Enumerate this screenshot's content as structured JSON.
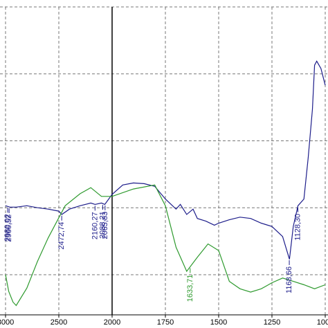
{
  "chart_data": {
    "type": "line",
    "xlim": [
      3000,
      1000
    ],
    "xticks": [
      3000,
      2500,
      2000,
      1750,
      1500,
      1250,
      1000
    ],
    "ylim": [
      0.4,
      5
    ],
    "yticks": [
      1,
      2,
      3,
      4,
      5
    ],
    "grid": true,
    "series": [
      {
        "color": "#1c1c8a",
        "x": [
          3000,
          2960,
          2900,
          2800,
          2700,
          2600,
          2500,
          2472,
          2400,
          2300,
          2200,
          2160,
          2100,
          2068,
          2000,
          1950,
          1900,
          1850,
          1800,
          1750,
          1700,
          1680,
          1650,
          1620,
          1600,
          1560,
          1520,
          1500,
          1450,
          1400,
          1350,
          1300,
          1250,
          1200,
          1168,
          1150,
          1128,
          1100,
          1080,
          1060,
          1050,
          1040,
          1020,
          1000
        ],
        "values": [
          2.03,
          2.01,
          2.01,
          2.03,
          2.0,
          1.98,
          1.95,
          1.9,
          1.98,
          2.03,
          2.07,
          2.05,
          2.07,
          2.05,
          2.2,
          2.34,
          2.37,
          2.36,
          2.32,
          2.13,
          1.98,
          2.05,
          1.9,
          1.98,
          1.84,
          1.8,
          1.74,
          1.77,
          1.82,
          1.86,
          1.84,
          1.77,
          1.72,
          1.57,
          1.23,
          1.72,
          2.03,
          2.13,
          2.75,
          3.47,
          4.13,
          4.19,
          4.08,
          3.83
        ]
      },
      {
        "color": "#2e9a2e",
        "x": [
          3000,
          2970,
          2930,
          2900,
          2800,
          2700,
          2600,
          2500,
          2440,
          2300,
          2200,
          2100,
          2000,
          1900,
          1800,
          1750,
          1700,
          1650,
          1600,
          1550,
          1500,
          1450,
          1400,
          1350,
          1300,
          1250,
          1200,
          1150,
          1100,
          1050,
          1000
        ],
        "values": [
          1.0,
          0.75,
          0.59,
          0.54,
          0.8,
          1.2,
          1.55,
          1.85,
          2.03,
          2.21,
          2.3,
          2.17,
          2.17,
          2.28,
          2.34,
          2.03,
          1.41,
          1.05,
          1.26,
          1.46,
          1.36,
          0.9,
          0.79,
          0.74,
          0.79,
          0.88,
          0.95,
          0.9,
          0.85,
          0.79,
          0.85
        ]
      }
    ],
    "annotations": [
      {
        "text": "2980,02",
        "x": 2980.02,
        "series": 0
      },
      {
        "text": "2966,52",
        "x": 2966.52,
        "series": 0
      },
      {
        "text": "2472,74",
        "x": 2472.74,
        "series": 0
      },
      {
        "text": "2160,27",
        "x": 2160.27,
        "series": 0
      },
      {
        "text": "2088,21",
        "x": 2088.21,
        "series": 0
      },
      {
        "text": "2065,83",
        "x": 2065.83,
        "series": 0
      },
      {
        "text": "1168,66",
        "x": 1168.66,
        "series": 0
      },
      {
        "text": "1128,30",
        "x": 1128.3,
        "series": 0
      },
      {
        "text": "1633,71",
        "x": 1633.71,
        "series": 1
      }
    ]
  }
}
